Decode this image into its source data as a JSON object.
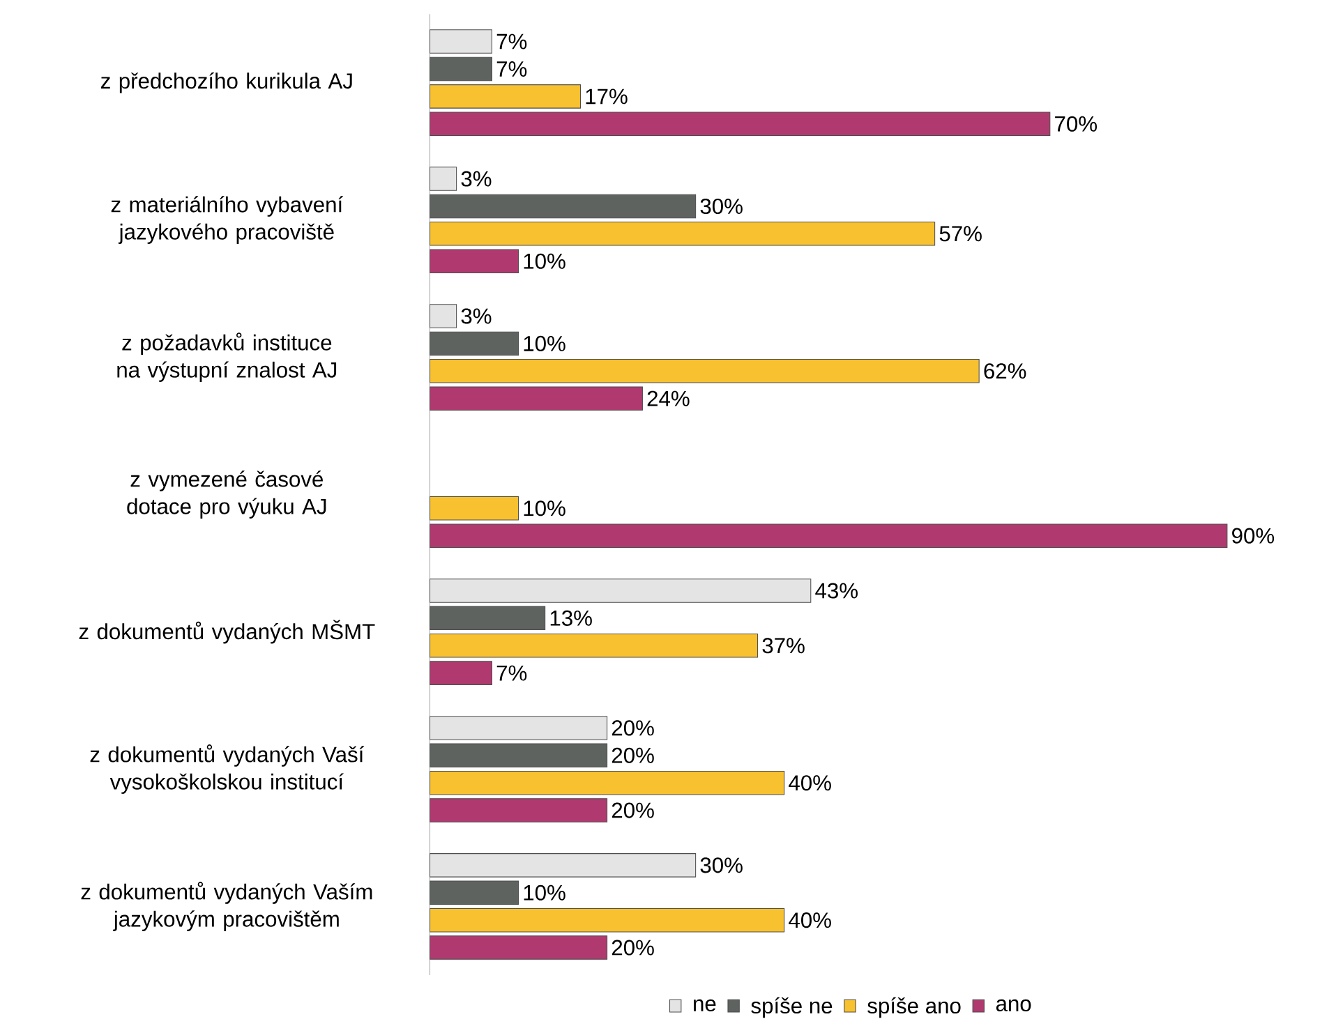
{
  "chart_data": {
    "type": "bar",
    "orientation": "horizontal",
    "legend": "bottom",
    "categories": [
      "z předchozího kurikula AJ",
      "z materiálního vybavení jazykového pracoviště",
      "z požadavků instituce na výstupní znalost AJ",
      "z vymezené časové dotace pro výuku AJ",
      "z dokumentů vydaných MŠMT",
      "z dokumentů vydaných Vaší vysokoškolskou institucí",
      "z dokumentů vydaných Vaším jazykovým pracovištěm"
    ],
    "series": [
      {
        "name": "ne",
        "color": "#e4e4e4",
        "values": [
          7,
          3,
          3,
          null,
          43,
          20,
          30
        ],
        "value_labels": [
          "7%",
          "3%",
          "3%",
          null,
          "43%",
          "20%",
          "30%"
        ]
      },
      {
        "name": "spíše ne",
        "color": "#5e6360",
        "values": [
          7,
          30,
          10,
          null,
          13,
          20,
          10
        ],
        "value_labels": [
          "7%",
          "30%",
          "10%",
          null,
          "13%",
          "20%",
          "10%"
        ]
      },
      {
        "name": "spíše ano",
        "color": "#f8c12f",
        "values": [
          17,
          57,
          62,
          10,
          37,
          40,
          40
        ],
        "value_labels": [
          "17%",
          "57%",
          "62%",
          "10%",
          "37%",
          "40%",
          "40%"
        ]
      },
      {
        "name": "ano",
        "color": "#b03a6f",
        "values": [
          70,
          10,
          24,
          90,
          7,
          20,
          20
        ],
        "value_labels": [
          "70%",
          "10%",
          "24%",
          "90%",
          "7%",
          "20%",
          "20%"
        ]
      }
    ]
  }
}
